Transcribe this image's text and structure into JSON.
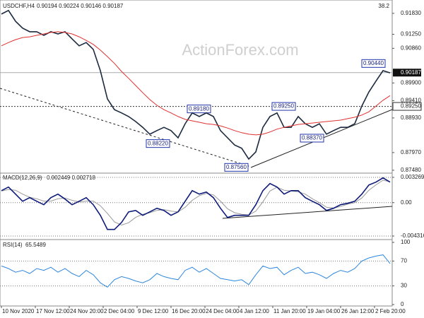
{
  "watermark": "ActionForex.com",
  "chart_data": [
    {
      "type": "line",
      "title": "USDCHF,H4",
      "readout": "0.90194 0.90224 0.90146 0.90187",
      "annotation_text": "38.2",
      "ylim": [
        0.874,
        0.922
      ],
      "yticks": [
        {
          "value": 0.9183,
          "label": "0.91830"
        },
        {
          "value": 0.9125,
          "label": "0.91250"
        },
        {
          "value": 0.9086,
          "label": "0.90860"
        },
        {
          "value": 0.899,
          "label": "0.89900"
        },
        {
          "value": 0.8941,
          "label": "0.89410"
        },
        {
          "value": 0.8893,
          "label": "0.88930"
        },
        {
          "value": 0.8797,
          "label": "0.87970"
        },
        {
          "value": 0.8748,
          "label": "0.87480"
        }
      ],
      "current_price": {
        "value": 0.90187,
        "label": "0.90187"
      },
      "level": {
        "value": 0.8925,
        "label": "0.89250"
      },
      "annotations": [
        {
          "value": 0.8918,
          "label": "0.89180"
        },
        {
          "value": 0.8822,
          "label": "0.88220"
        },
        {
          "value": 0.8756,
          "label": "0.87560"
        },
        {
          "value": 0.8925,
          "label": "0.89250"
        },
        {
          "value": 0.8837,
          "label": "0.88370"
        },
        {
          "value": 0.9044,
          "label": "0.90440"
        }
      ],
      "series": [
        {
          "color": "#1c2a3f",
          "values": [
            0.9181,
            0.9191,
            0.9161,
            0.9142,
            0.9132,
            0.9132,
            0.9122,
            0.9132,
            0.9126,
            0.9132,
            0.9112,
            0.9093,
            0.9102,
            0.9083,
            0.9024,
            0.8946,
            0.8916,
            0.8907,
            0.8897,
            0.8883,
            0.8867,
            0.8848,
            0.8858,
            0.8867,
            0.8858,
            0.8838,
            0.8877,
            0.8907,
            0.8897,
            0.8907,
            0.8897,
            0.8858,
            0.8838,
            0.8818,
            0.8809,
            0.8779,
            0.8799,
            0.8867,
            0.8897,
            0.8907,
            0.8867,
            0.8867,
            0.8897,
            0.8877,
            0.8867,
            0.8877,
            0.8848,
            0.8858,
            0.8867,
            0.8867,
            0.8877,
            0.8926,
            0.8965,
            0.8995,
            0.9024,
            0.9018
          ]
        },
        {
          "color": "#e03030",
          "values": [
            0.9093,
            0.9102,
            0.911,
            0.9116,
            0.9118,
            0.9122,
            0.9126,
            0.913,
            0.9132,
            0.913,
            0.9126,
            0.9118,
            0.9108,
            0.9097,
            0.9081,
            0.9063,
            0.9044,
            0.9022,
            0.9003,
            0.8983,
            0.8963,
            0.8944,
            0.8928,
            0.8916,
            0.8907,
            0.8897,
            0.8889,
            0.8885,
            0.8881,
            0.8877,
            0.8875,
            0.8871,
            0.8865,
            0.8858,
            0.8852,
            0.8848,
            0.8846,
            0.8848,
            0.8854,
            0.8862,
            0.8867,
            0.8871,
            0.8875,
            0.8877,
            0.8879,
            0.8881,
            0.8883,
            0.8885,
            0.8887,
            0.8891,
            0.8895,
            0.8901,
            0.891,
            0.8926,
            0.8942,
            0.8955
          ]
        }
      ]
    },
    {
      "type": "line",
      "title": "MACD(12,26,9)",
      "readout": "0.002449 0.002718",
      "ylim": [
        -0.00468,
        0.00363
      ],
      "yticks": [
        0.003269,
        {
          "value": 0,
          "label": "0.00"
        },
        -0.004316
      ],
      "series": [
        {
          "color": "#999999",
          "values": [
            0.0015,
            0.0017,
            0.0016,
            0.0011,
            0.0007,
            0.0005,
            0.0002,
            0.0002,
            0.0005,
            0.0006,
            0.0003,
            0.0001,
            0.0002,
            0.0002,
            -0.0004,
            -0.0014,
            -0.0025,
            -0.0029,
            -0.0026,
            -0.0019,
            -0.0015,
            -0.0013,
            -0.001,
            -0.0009,
            -0.0011,
            -0.0012,
            -0.0006,
            0.0003,
            0.0009,
            0.0012,
            0.001,
            0.0002,
            -0.0008,
            -0.0013,
            -0.0015,
            -0.0016,
            -0.0011,
            0.0001,
            0.0015,
            0.002,
            0.0016,
            0.0015,
            0.0014,
            0.0011,
            0.0005,
            0.0,
            -0.0006,
            -0.0007,
            -0.0005,
            -0.0002,
            0.0,
            0.0006,
            0.0016,
            0.0023,
            0.0029,
            0.0027
          ]
        },
        {
          "color": "#0d1a7a",
          "values": [
            0.00155,
            0.00201,
            0.0011,
            0.00018,
            0.00064,
            0.00018,
            -0.00027,
            0.00064,
            0.0011,
            0.00046,
            -0.00027,
            0.00018,
            0.00064,
            -0.00027,
            -0.00164,
            -0.00347,
            -0.00347,
            -0.00256,
            -0.00119,
            -0.00101,
            -0.00164,
            -0.00119,
            -0.00073,
            -0.00101,
            -0.00164,
            -0.00119,
            0.00018,
            0.00155,
            0.0011,
            0.00137,
            0.00064,
            -0.00073,
            -0.00192,
            -0.00164,
            -0.00164,
            -0.00164,
            -0.00027,
            0.00155,
            0.00247,
            0.00201,
            0.0011,
            0.00155,
            0.00155,
            0.00064,
            0.00018,
            -0.00027,
            -0.00101,
            -0.00073,
            -0.00027,
            -9e-05,
            0.00018,
            0.0011,
            0.00228,
            0.00265,
            0.0032,
            0.00265
          ]
        }
      ]
    },
    {
      "type": "line",
      "title": "RSI(14)",
      "readout": "65.5489",
      "ylim": [
        0,
        100
      ],
      "yticks": [
        100,
        70,
        30,
        0
      ],
      "xtick_labels": [
        "10 Nov 2020",
        "17 Nov 12:00",
        "24 Nov 20:00",
        "2 Dec 04:00",
        "9 Dec 12:00",
        "16 Dec 20:00",
        "24 Dec 04:00",
        "4 Jan 12:00",
        "11 Jan 20:00",
        "19 Jan 04:00",
        "26 Jan 12:00",
        "2 Feb 20:00"
      ],
      "series": [
        {
          "color": "#2e86de",
          "values": [
            62,
            58,
            52,
            55,
            50,
            58,
            55,
            60,
            52,
            58,
            50,
            45,
            55,
            48,
            35,
            28,
            40,
            45,
            42,
            38,
            35,
            40,
            50,
            45,
            42,
            40,
            55,
            60,
            52,
            58,
            50,
            42,
            40,
            38,
            40,
            32,
            48,
            62,
            58,
            60,
            48,
            55,
            60,
            50,
            52,
            48,
            42,
            50,
            55,
            52,
            58,
            70,
            75,
            78,
            80,
            66
          ]
        }
      ]
    }
  ]
}
